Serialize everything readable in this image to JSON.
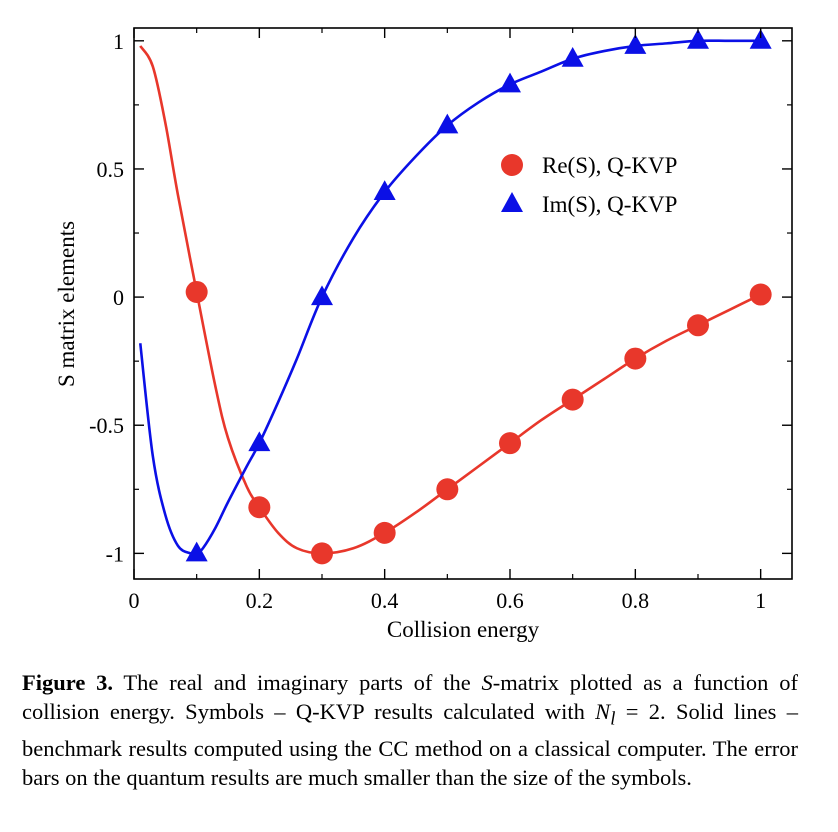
{
  "chart_data": {
    "type": "line",
    "xlabel": "Collision energy",
    "ylabel": "S matrix elements",
    "xlim": [
      0,
      1.05
    ],
    "ylim": [
      -1.1,
      1.05
    ],
    "xticks": [
      0,
      0.2,
      0.4,
      0.6,
      0.8,
      1
    ],
    "xtick_labels": [
      "0",
      "0.2",
      "0.4",
      "0.6",
      "0.8",
      "1"
    ],
    "yticks": [
      -1,
      -0.5,
      0,
      0.5,
      1
    ],
    "ytick_labels": [
      "-1",
      "-0.5",
      "0",
      "0.5",
      "1"
    ],
    "grid": false,
    "legend_position": "upper-right",
    "series": [
      {
        "name": "Re(S), Q-KVP",
        "kind": "markers",
        "marker": "circle",
        "color": "#e8372b",
        "x": [
          0.1,
          0.2,
          0.3,
          0.4,
          0.5,
          0.6,
          0.7,
          0.8,
          0.9,
          1.0
        ],
        "y": [
          0.02,
          -0.82,
          -1.0,
          -0.92,
          -0.75,
          -0.57,
          -0.4,
          -0.24,
          -0.11,
          0.01
        ]
      },
      {
        "name": "Im(S), Q-KVP",
        "kind": "markers",
        "marker": "triangle",
        "color": "#0b10e6",
        "x": [
          0.1,
          0.2,
          0.3,
          0.4,
          0.5,
          0.6,
          0.7,
          0.8,
          0.9,
          1.0
        ],
        "y": [
          -1.0,
          -0.57,
          0.0,
          0.41,
          0.67,
          0.83,
          0.93,
          0.98,
          1.0,
          1.0
        ]
      },
      {
        "kind": "line",
        "color": "#e8372b",
        "x": [
          0.01,
          0.03,
          0.05,
          0.07,
          0.1,
          0.13,
          0.15,
          0.18,
          0.2,
          0.23,
          0.26,
          0.3,
          0.35,
          0.4,
          0.45,
          0.5,
          0.55,
          0.6,
          0.65,
          0.7,
          0.75,
          0.8,
          0.85,
          0.9,
          0.95,
          1.0
        ],
        "y": [
          0.98,
          0.9,
          0.68,
          0.4,
          0.02,
          -0.35,
          -0.55,
          -0.74,
          -0.82,
          -0.92,
          -0.98,
          -1.0,
          -0.98,
          -0.92,
          -0.84,
          -0.75,
          -0.66,
          -0.57,
          -0.48,
          -0.4,
          -0.32,
          -0.24,
          -0.17,
          -0.11,
          -0.05,
          0.01
        ]
      },
      {
        "kind": "line",
        "color": "#0b10e6",
        "x": [
          0.01,
          0.03,
          0.05,
          0.07,
          0.09,
          0.1,
          0.11,
          0.13,
          0.15,
          0.18,
          0.2,
          0.23,
          0.26,
          0.3,
          0.35,
          0.4,
          0.45,
          0.5,
          0.55,
          0.6,
          0.65,
          0.7,
          0.75,
          0.8,
          0.85,
          0.9,
          0.95,
          1.0
        ],
        "y": [
          -0.18,
          -0.62,
          -0.85,
          -0.97,
          -1.0,
          -1.0,
          -0.98,
          -0.9,
          -0.8,
          -0.66,
          -0.57,
          -0.41,
          -0.24,
          0.0,
          0.23,
          0.41,
          0.55,
          0.67,
          0.76,
          0.83,
          0.88,
          0.93,
          0.96,
          0.98,
          0.99,
          1.0,
          1.0,
          1.0
        ]
      }
    ]
  },
  "caption": {
    "label": "Figure 3.",
    "part1": " The real and imaginary parts of the ",
    "italic1": "S",
    "part2": "-matrix plotted as a function of collision energy. Symbols – Q-KVP results calculated with ",
    "italic2": "N",
    "subscript": "l",
    "part3": " = 2. Solid lines – benchmark results computed using the CC method on a classical computer. The error bars on the quantum results are much smaller than the size of the symbols."
  }
}
